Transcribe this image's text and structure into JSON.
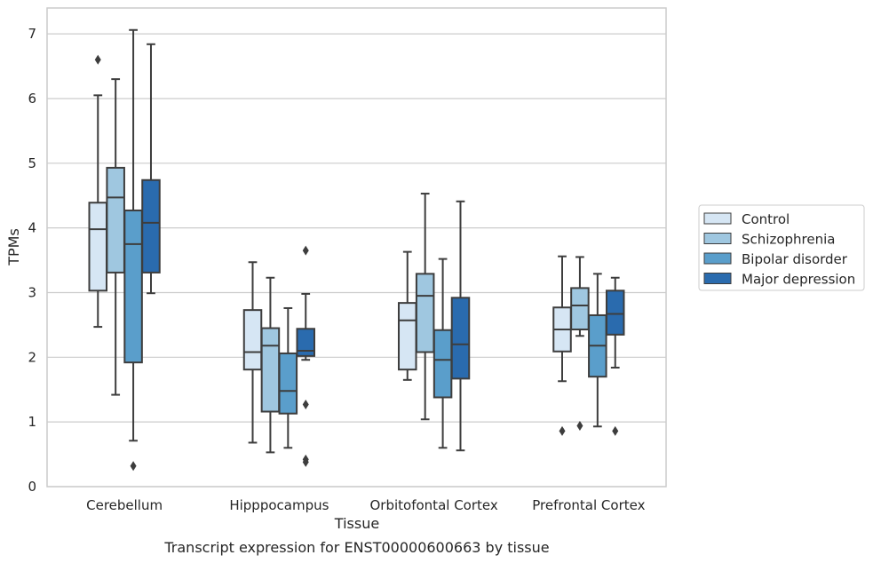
{
  "chart_data": {
    "type": "boxplot",
    "xlabel": "Tissue",
    "ylabel": "TPMs",
    "caption": "Transcript expression for ENST00000600663 by tissue",
    "ylim": [
      0,
      7.4
    ],
    "yticks": [
      0,
      1,
      2,
      3,
      4,
      5,
      6,
      7
    ],
    "grid": "horizontal",
    "legend_position": "right",
    "categories": [
      "Cerebellum",
      "Hipppocampus",
      "Orbitofontal Cortex",
      "Prefrontal Cortex"
    ],
    "series": [
      {
        "name": "Control",
        "color": "#d6e6f4",
        "boxes": [
          {
            "min": 2.47,
            "q1": 3.03,
            "median": 3.98,
            "q3": 4.39,
            "max": 6.05,
            "outliers": [
              6.6
            ]
          },
          {
            "min": 0.68,
            "q1": 1.81,
            "median": 2.08,
            "q3": 2.73,
            "max": 3.47,
            "outliers": []
          },
          {
            "min": 1.65,
            "q1": 1.81,
            "median": 2.57,
            "q3": 2.84,
            "max": 3.63,
            "outliers": []
          },
          {
            "min": 1.63,
            "q1": 2.09,
            "median": 2.43,
            "q3": 2.77,
            "max": 3.56,
            "outliers": [
              0.86
            ]
          }
        ]
      },
      {
        "name": "Schizophrenia",
        "color": "#9fc7e0",
        "boxes": [
          {
            "min": 1.42,
            "q1": 3.31,
            "median": 4.47,
            "q3": 4.93,
            "max": 6.3,
            "outliers": []
          },
          {
            "min": 0.53,
            "q1": 1.16,
            "median": 2.18,
            "q3": 2.45,
            "max": 3.23,
            "outliers": []
          },
          {
            "min": 1.04,
            "q1": 2.08,
            "median": 2.95,
            "q3": 3.29,
            "max": 4.53,
            "outliers": []
          },
          {
            "min": 2.33,
            "q1": 2.43,
            "median": 2.8,
            "q3": 3.07,
            "max": 3.55,
            "outliers": [
              0.94
            ]
          }
        ]
      },
      {
        "name": "Bipolar disorder",
        "color": "#5a9ecb",
        "boxes": [
          {
            "min": 0.71,
            "q1": 1.92,
            "median": 3.75,
            "q3": 4.27,
            "max": 7.06,
            "outliers": [
              0.32
            ]
          },
          {
            "min": 0.6,
            "q1": 1.13,
            "median": 1.48,
            "q3": 2.06,
            "max": 2.76,
            "outliers": []
          },
          {
            "min": 0.6,
            "q1": 1.38,
            "median": 1.96,
            "q3": 2.42,
            "max": 3.52,
            "outliers": []
          },
          {
            "min": 0.93,
            "q1": 1.7,
            "median": 2.18,
            "q3": 2.65,
            "max": 3.29,
            "outliers": []
          }
        ]
      },
      {
        "name": "Major depression",
        "color": "#2a6bae",
        "boxes": [
          {
            "min": 2.99,
            "q1": 3.31,
            "median": 4.08,
            "q3": 4.74,
            "max": 6.84,
            "outliers": []
          },
          {
            "min": 1.96,
            "q1": 2.02,
            "median": 2.1,
            "q3": 2.44,
            "max": 2.98,
            "outliers": [
              3.65,
              1.27,
              0.42,
              0.38
            ]
          },
          {
            "min": 0.56,
            "q1": 1.67,
            "median": 2.2,
            "q3": 2.92,
            "max": 4.41,
            "outliers": []
          },
          {
            "min": 1.84,
            "q1": 2.35,
            "median": 2.67,
            "q3": 3.03,
            "max": 3.23,
            "outliers": [
              0.86
            ]
          }
        ]
      }
    ]
  }
}
